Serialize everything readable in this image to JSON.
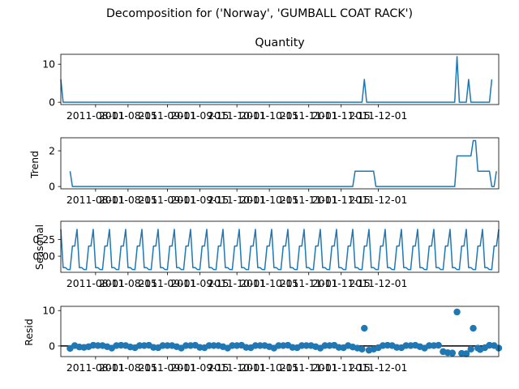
{
  "figure": {
    "title": "Decomposition for ('Norway', 'GUMBALL COAT RACK')"
  },
  "chart_data": [
    {
      "type": "line",
      "panel": "observed",
      "title": "Quantity",
      "xlabel": "",
      "ylabel": "",
      "x_ticks": [
        "2011-08-01",
        "2011-08-15",
        "2011-09-01",
        "2011-09-15",
        "2011-10-01",
        "2011-10-15",
        "2011-11-01",
        "2011-11-15",
        "2011-12-01"
      ],
      "y_ticks": [
        "0",
        "10"
      ],
      "ylim": [
        -0.6,
        12.6
      ],
      "series_values": [
        6,
        0,
        0,
        0,
        0,
        0,
        0,
        0,
        0,
        0,
        0,
        0,
        0,
        0,
        0,
        0,
        0,
        0,
        0,
        0,
        0,
        0,
        0,
        0,
        0,
        0,
        0,
        0,
        0,
        0,
        0,
        0,
        0,
        0,
        0,
        0,
        0,
        0,
        0,
        0,
        0,
        0,
        0,
        0,
        0,
        0,
        0,
        0,
        0,
        0,
        0,
        0,
        0,
        0,
        0,
        0,
        0,
        0,
        0,
        0,
        0,
        0,
        0,
        0,
        0,
        0,
        0,
        0,
        0,
        0,
        0,
        0,
        0,
        0,
        0,
        0,
        0,
        0,
        0,
        0,
        0,
        0,
        0,
        0,
        0,
        0,
        0,
        0,
        0,
        0,
        0,
        0,
        0,
        0,
        0,
        0,
        0,
        0,
        0,
        0,
        0,
        0,
        0,
        0,
        0,
        0,
        0,
        0,
        0,
        0,
        0,
        0,
        0,
        0,
        0,
        0,
        0,
        0,
        0,
        0,
        0,
        0,
        0,
        0,
        0,
        0,
        0,
        0,
        0,
        0,
        0,
        6,
        0,
        0,
        0,
        0,
        0,
        0,
        0,
        0,
        0,
        0,
        0,
        0,
        0,
        0,
        0,
        0,
        0,
        0,
        0,
        0,
        0,
        0,
        0,
        0,
        0,
        0,
        0,
        0,
        0,
        0,
        0,
        0,
        0,
        0,
        0,
        0,
        0,
        0,
        0,
        12,
        0,
        0,
        0,
        0,
        6,
        0,
        0,
        0,
        0,
        0,
        0,
        0,
        0,
        0,
        6
      ]
    },
    {
      "type": "line",
      "panel": "trend",
      "title": "",
      "xlabel": "",
      "ylabel": "Trend",
      "x_ticks": [
        "2011-08-01",
        "2011-08-15",
        "2011-09-01",
        "2011-09-15",
        "2011-10-01",
        "2011-10-15",
        "2011-11-01",
        "2011-11-15",
        "2011-12-01"
      ],
      "y_ticks": [
        "0",
        "2"
      ],
      "ylim": [
        -0.13,
        2.73
      ],
      "series_values": [
        null,
        null,
        null,
        null,
        0.857,
        0,
        0,
        0,
        0,
        0,
        0,
        0,
        0,
        0,
        0,
        0,
        0,
        0,
        0,
        0,
        0,
        0,
        0,
        0,
        0,
        0,
        0,
        0,
        0,
        0,
        0,
        0,
        0,
        0,
        0,
        0,
        0,
        0,
        0,
        0,
        0,
        0,
        0,
        0,
        0,
        0,
        0,
        0,
        0,
        0,
        0,
        0,
        0,
        0,
        0,
        0,
        0,
        0,
        0,
        0,
        0,
        0,
        0,
        0,
        0,
        0,
        0,
        0,
        0,
        0,
        0,
        0,
        0,
        0,
        0,
        0,
        0,
        0,
        0,
        0,
        0,
        0,
        0,
        0,
        0,
        0,
        0,
        0,
        0,
        0,
        0,
        0,
        0,
        0,
        0,
        0,
        0,
        0,
        0,
        0,
        0,
        0,
        0,
        0,
        0,
        0,
        0,
        0,
        0,
        0,
        0,
        0,
        0,
        0,
        0,
        0,
        0,
        0,
        0,
        0,
        0,
        0,
        0,
        0,
        0,
        0,
        0,
        0.857,
        0.857,
        0.857,
        0.857,
        0.857,
        0.857,
        0.857,
        0.857,
        0.857,
        0,
        0,
        0,
        0,
        0,
        0,
        0,
        0,
        0,
        0,
        0,
        0,
        0,
        0,
        0,
        0,
        0,
        0,
        0,
        0,
        0,
        0,
        0,
        0,
        0,
        0,
        0,
        0,
        0,
        0,
        0,
        0,
        0,
        0,
        0,
        1.714,
        1.714,
        1.714,
        1.714,
        1.714,
        1.714,
        1.714,
        2.571,
        2.571,
        0.857,
        0.857,
        0.857,
        0.857,
        0.857,
        0.857,
        0,
        0,
        0.857,
        null,
        null,
        null
      ]
    },
    {
      "type": "line",
      "panel": "seasonal",
      "title": "",
      "xlabel": "",
      "ylabel": "Seasonal",
      "x_ticks": [
        "2011-08-01",
        "2011-08-15",
        "2011-09-01",
        "2011-09-15",
        "2011-10-01",
        "2011-10-15",
        "2011-11-01",
        "2011-11-15",
        "2011-12-01"
      ],
      "y_ticks": [
        "0.00",
        "0.25"
      ],
      "ylim": [
        -0.24,
        0.52
      ],
      "series_values": [
        0.4,
        -0.17,
        -0.17,
        -0.2,
        -0.2,
        0.15,
        0.15,
        0.4,
        -0.17,
        -0.17,
        -0.2,
        -0.2,
        0.15,
        0.15,
        0.4,
        -0.17,
        -0.17,
        -0.2,
        -0.2,
        0.15,
        0.15,
        0.4,
        -0.17,
        -0.17,
        -0.2,
        -0.2,
        0.15,
        0.15,
        0.4,
        -0.17,
        -0.17,
        -0.2,
        -0.2,
        0.15,
        0.15,
        0.4,
        -0.17,
        -0.17,
        -0.2,
        -0.2,
        0.15,
        0.15,
        0.4,
        -0.17,
        -0.17,
        -0.2,
        -0.2,
        0.15,
        0.15,
        0.4,
        -0.17,
        -0.17,
        -0.2,
        -0.2,
        0.15,
        0.15,
        0.4,
        -0.17,
        -0.17,
        -0.2,
        -0.2,
        0.15,
        0.15,
        0.4,
        -0.17,
        -0.17,
        -0.2,
        -0.2,
        0.15,
        0.15,
        0.4,
        -0.17,
        -0.17,
        -0.2,
        -0.2,
        0.15,
        0.15,
        0.4,
        -0.17,
        -0.17,
        -0.2,
        -0.2,
        0.15,
        0.15,
        0.4,
        -0.17,
        -0.17,
        -0.2,
        -0.2,
        0.15,
        0.15,
        0.4,
        -0.17,
        -0.17,
        -0.2,
        -0.2,
        0.15,
        0.15,
        0.4,
        -0.17,
        -0.17,
        -0.2,
        -0.2,
        0.15,
        0.15,
        0.4,
        -0.17,
        -0.17,
        -0.2,
        -0.2,
        0.15,
        0.15,
        0.4,
        -0.17,
        -0.17,
        -0.2,
        -0.2,
        0.15,
        0.15,
        0.4,
        -0.17,
        -0.17,
        -0.2,
        -0.2,
        0.15,
        0.15,
        0.4,
        -0.17,
        -0.17,
        -0.2,
        -0.2,
        0.15,
        0.15,
        0.4,
        -0.17,
        -0.17,
        -0.2,
        -0.2,
        0.15,
        0.15,
        0.4,
        -0.17,
        -0.17,
        -0.2,
        -0.2,
        0.15,
        0.15,
        0.4,
        -0.17,
        -0.17,
        -0.2,
        -0.2,
        0.15,
        0.15,
        0.4,
        -0.17,
        -0.17,
        -0.2,
        -0.2,
        0.15,
        0.15,
        0.4,
        -0.17,
        -0.17,
        -0.2,
        -0.2,
        0.15,
        0.15,
        0.4,
        -0.17,
        -0.17,
        -0.2,
        -0.2,
        0.15,
        0.15,
        0.4,
        -0.17,
        -0.17,
        -0.2,
        -0.2,
        0.15,
        0.15,
        0.4,
        -0.17,
        -0.17,
        -0.2,
        -0.2,
        0.15,
        0.15,
        0.4
      ]
    },
    {
      "type": "scatter",
      "panel": "resid",
      "title": "",
      "xlabel": "",
      "ylabel": "Resid",
      "x_ticks": [
        "2011-08-01",
        "2011-08-15",
        "2011-09-01",
        "2011-09-15",
        "2011-10-01",
        "2011-10-15",
        "2011-11-01",
        "2011-11-15",
        "2011-12-01"
      ],
      "y_ticks": [
        "0",
        "10"
      ],
      "ylim": [
        -3.0,
        11.2
      ],
      "zero_line": true,
      "points": [
        [
          4,
          -0.7
        ],
        [
          6,
          0.1
        ],
        [
          8,
          -0.3
        ],
        [
          10,
          -0.4
        ],
        [
          12,
          -0.2
        ],
        [
          14,
          0.2
        ],
        [
          16,
          0.1
        ],
        [
          18,
          0.1
        ],
        [
          20,
          -0.2
        ],
        [
          22,
          -0.6
        ],
        [
          24,
          0.1
        ],
        [
          26,
          0.2
        ],
        [
          28,
          0.1
        ],
        [
          30,
          -0.3
        ],
        [
          32,
          -0.5
        ],
        [
          34,
          0.1
        ],
        [
          36,
          0.1
        ],
        [
          38,
          0.2
        ],
        [
          40,
          -0.4
        ],
        [
          42,
          -0.5
        ],
        [
          44,
          0.1
        ],
        [
          46,
          0.1
        ],
        [
          48,
          0.1
        ],
        [
          50,
          -0.2
        ],
        [
          52,
          -0.6
        ],
        [
          54,
          0.1
        ],
        [
          56,
          0.1
        ],
        [
          58,
          0.2
        ],
        [
          60,
          -0.4
        ],
        [
          62,
          -0.5
        ],
        [
          64,
          0.1
        ],
        [
          66,
          0.1
        ],
        [
          68,
          0.1
        ],
        [
          70,
          -0.2
        ],
        [
          72,
          -0.6
        ],
        [
          74,
          0.1
        ],
        [
          76,
          0.1
        ],
        [
          78,
          0.2
        ],
        [
          80,
          -0.4
        ],
        [
          82,
          -0.5
        ],
        [
          84,
          0.1
        ],
        [
          86,
          0.1
        ],
        [
          88,
          0.1
        ],
        [
          90,
          -0.2
        ],
        [
          92,
          -0.6
        ],
        [
          94,
          0.1
        ],
        [
          96,
          0.1
        ],
        [
          98,
          0.2
        ],
        [
          100,
          -0.4
        ],
        [
          102,
          -0.5
        ],
        [
          104,
          0.1
        ],
        [
          106,
          0.1
        ],
        [
          108,
          0.1
        ],
        [
          110,
          -0.2
        ],
        [
          112,
          -0.6
        ],
        [
          114,
          0.1
        ],
        [
          116,
          0.1
        ],
        [
          118,
          0.2
        ],
        [
          120,
          -0.4
        ],
        [
          122,
          -0.5
        ],
        [
          124,
          0.1
        ],
        [
          126,
          -0.3
        ],
        [
          128,
          -0.6
        ],
        [
          130,
          -0.9
        ],
        [
          131,
          5.0
        ],
        [
          133,
          -1.2
        ],
        [
          135,
          -0.9
        ],
        [
          137,
          -0.5
        ],
        [
          139,
          0.1
        ],
        [
          141,
          0.2
        ],
        [
          143,
          0.1
        ],
        [
          145,
          -0.4
        ],
        [
          147,
          -0.5
        ],
        [
          149,
          0.1
        ],
        [
          151,
          0.1
        ],
        [
          153,
          0.2
        ],
        [
          155,
          -0.2
        ],
        [
          157,
          -0.6
        ],
        [
          159,
          0.1
        ],
        [
          161,
          0.1
        ],
        [
          163,
          0.2
        ],
        [
          165,
          -1.6
        ],
        [
          167,
          -1.9
        ],
        [
          169,
          -2.0
        ],
        [
          171,
          9.6
        ],
        [
          173,
          -2.1
        ],
        [
          175,
          -2.2
        ],
        [
          177,
          -0.9
        ],
        [
          178,
          5.0
        ],
        [
          180,
          -0.6
        ],
        [
          181,
          -1.0
        ],
        [
          183,
          -0.5
        ],
        [
          185,
          0.2
        ],
        [
          187,
          0.1
        ],
        [
          189,
          -0.6
        ]
      ]
    }
  ]
}
